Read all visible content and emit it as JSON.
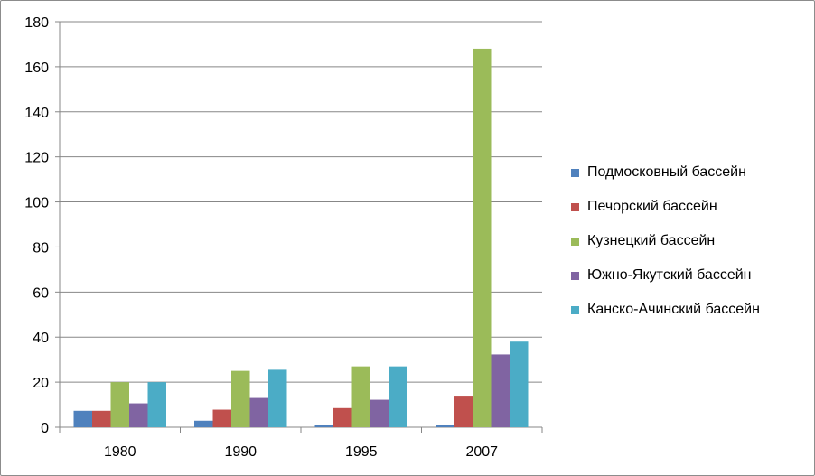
{
  "chart_data": {
    "type": "bar",
    "categories": [
      "1980",
      "1990",
      "1995",
      "2007"
    ],
    "series": [
      {
        "name": "Подмосковный бассейн",
        "color": "#4F81BD",
        "values": [
          7.3,
          2.9,
          0.9,
          0.8
        ]
      },
      {
        "name": "Печорский бассейн",
        "color": "#C0504D",
        "values": [
          7.3,
          7.8,
          8.5,
          14.0
        ]
      },
      {
        "name": "Кузнецкий бассейн",
        "color": "#9BBB59",
        "values": [
          20.0,
          25.0,
          27.0,
          168.0
        ]
      },
      {
        "name": "Южно-Якутский бассейн",
        "color": "#8064A2",
        "values": [
          10.6,
          13.0,
          12.2,
          32.3
        ]
      },
      {
        "name": "Канско-Ачинский бассейн",
        "color": "#4BACC6",
        "values": [
          20.0,
          25.5,
          27.0,
          38.0
        ]
      }
    ],
    "ylim": [
      0,
      180
    ],
    "yticks": [
      "0",
      "20",
      "40",
      "60",
      "80",
      "100",
      "120",
      "140",
      "160",
      "180"
    ],
    "grid": true,
    "legend_position": "right"
  }
}
